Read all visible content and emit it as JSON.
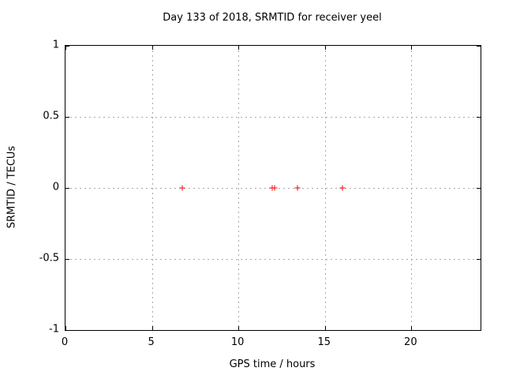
{
  "colors": {
    "background": "#ffffff",
    "frame": "#000000",
    "text": "#000000",
    "grid": "#a9a9a9",
    "marker": "#ff0000"
  },
  "chart_data": {
    "type": "scatter",
    "title": "Day 133 of 2018, SRMTID for receiver yeel",
    "xlabel": "GPS time / hours",
    "ylabel": "SRMTID / TECUs",
    "xlim": [
      0,
      24
    ],
    "ylim": [
      -1,
      1
    ],
    "xticks": [
      0,
      5,
      10,
      15,
      20
    ],
    "xtick_labels": [
      "0",
      "5",
      "10",
      "15",
      "20"
    ],
    "yticks": [
      -1,
      -0.5,
      0,
      0.5,
      1
    ],
    "ytick_labels": [
      "-1",
      "-0.5",
      "0",
      "0.5",
      "1"
    ],
    "grid": true,
    "grid_style": "dashed",
    "ticks_mirrored": true,
    "legend": "none",
    "marker_style": "plus",
    "series": [
      {
        "name": "SRMTID",
        "color": "#ff0000",
        "points": [
          {
            "x": 6.75,
            "y": 0
          },
          {
            "x": 11.95,
            "y": 0
          },
          {
            "x": 12.1,
            "y": 0
          },
          {
            "x": 13.4,
            "y": 0
          },
          {
            "x": 16.0,
            "y": 0
          }
        ]
      }
    ]
  }
}
